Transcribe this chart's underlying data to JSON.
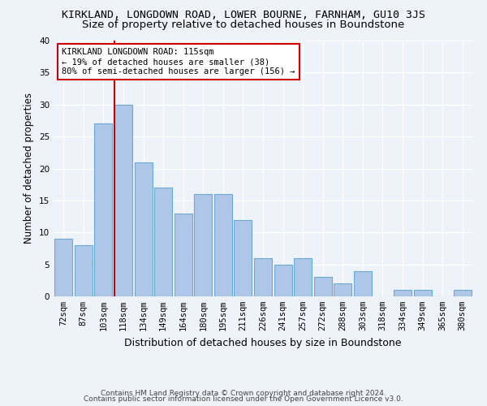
{
  "title": "KIRKLAND, LONGDOWN ROAD, LOWER BOURNE, FARNHAM, GU10 3JS",
  "subtitle": "Size of property relative to detached houses in Boundstone",
  "xlabel": "Distribution of detached houses by size in Boundstone",
  "ylabel": "Number of detached properties",
  "categories": [
    "72sqm",
    "87sqm",
    "103sqm",
    "118sqm",
    "134sqm",
    "149sqm",
    "164sqm",
    "180sqm",
    "195sqm",
    "211sqm",
    "226sqm",
    "241sqm",
    "257sqm",
    "272sqm",
    "288sqm",
    "303sqm",
    "318sqm",
    "334sqm",
    "349sqm",
    "365sqm",
    "380sqm"
  ],
  "values": [
    9,
    8,
    27,
    30,
    21,
    17,
    13,
    16,
    16,
    12,
    6,
    5,
    6,
    3,
    2,
    4,
    0,
    1,
    1,
    0,
    1
  ],
  "bar_color": "#aec6e8",
  "bar_edge_color": "#6aaad4",
  "vline_color": "#cc0000",
  "annotation_text": "KIRKLAND LONGDOWN ROAD: 115sqm\n← 19% of detached houses are smaller (38)\n80% of semi-detached houses are larger (156) →",
  "annotation_box_color": "#ffffff",
  "annotation_box_edge": "#cc0000",
  "footer1": "Contains HM Land Registry data © Crown copyright and database right 2024.",
  "footer2": "Contains public sector information licensed under the Open Government Licence v3.0.",
  "bg_color": "#eef2f9",
  "ylim": [
    0,
    40
  ],
  "yticks": [
    0,
    5,
    10,
    15,
    20,
    25,
    30,
    35,
    40
  ],
  "title_fontsize": 9.5,
  "subtitle_fontsize": 9.5,
  "ylabel_fontsize": 8.5,
  "xlabel_fontsize": 9,
  "tick_fontsize": 7.5,
  "footer_fontsize": 6.5
}
